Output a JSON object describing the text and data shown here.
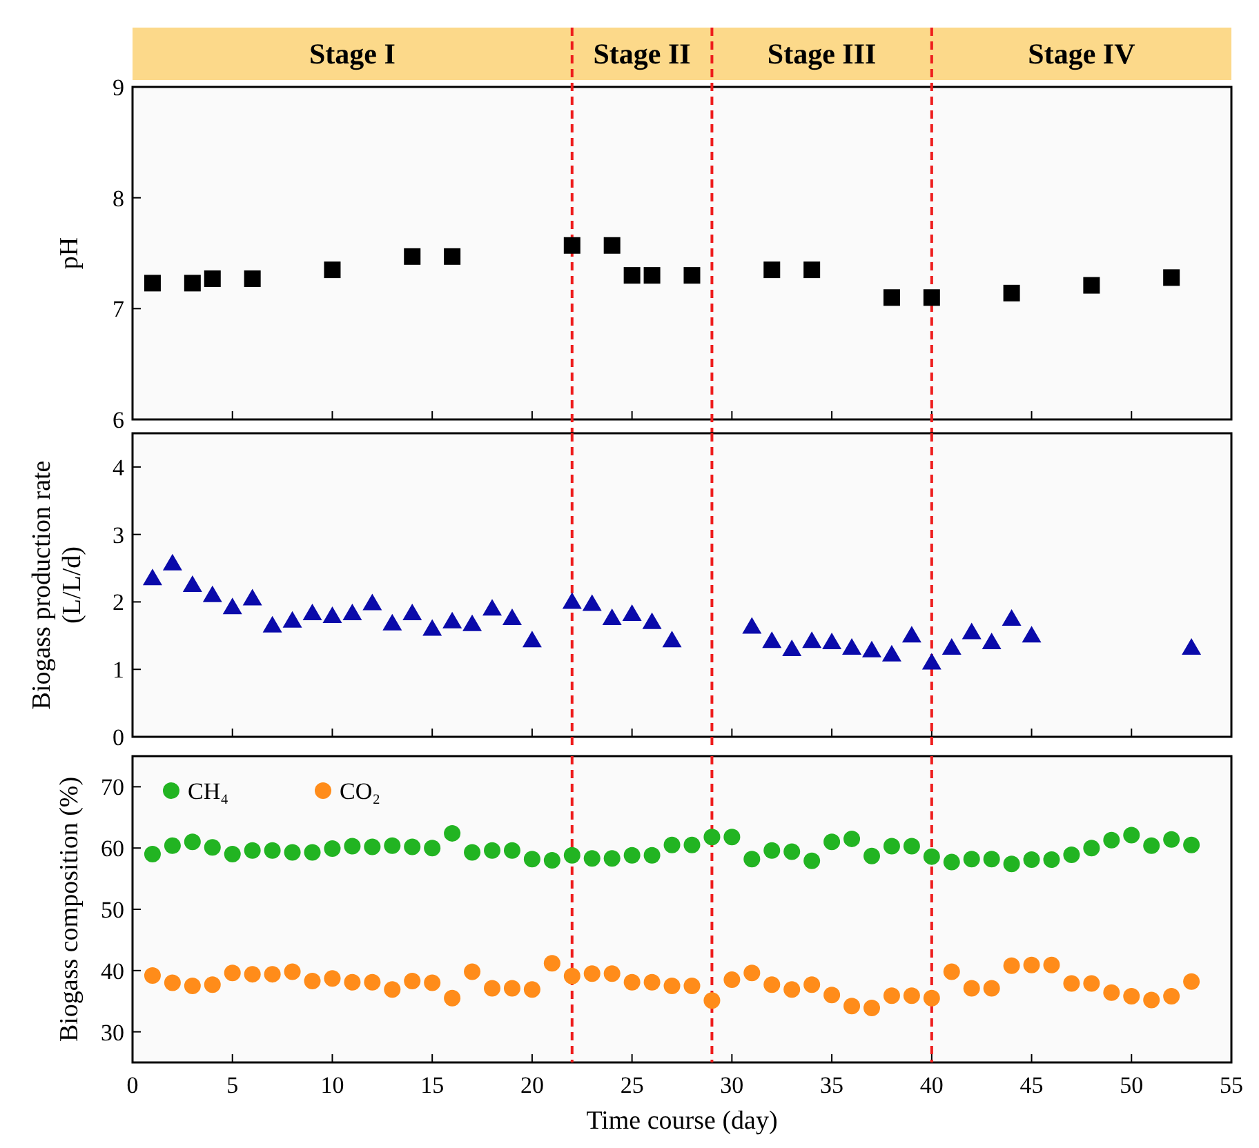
{
  "chart_data": [
    {
      "type": "scatter",
      "ylabel": "pH",
      "xlim": [
        0,
        55
      ],
      "xticks": [
        0,
        5,
        10,
        15,
        20,
        25,
        30,
        35,
        40,
        45,
        50,
        55
      ],
      "ylim": [
        6,
        9
      ],
      "yticks": [
        6,
        7,
        8,
        9
      ],
      "tick_labels": "y",
      "grid": false,
      "marker": "square",
      "annotations": [
        "Stage I",
        "Stage II",
        "Stage III",
        "Stage IV"
      ],
      "ref_lines": [
        {
          "axis": "x",
          "value": 22,
          "color": "#ee1c1c",
          "line_style": "dashed"
        },
        {
          "axis": "x",
          "value": 29,
          "color": "#ee1c1c",
          "line_style": "dashed"
        },
        {
          "axis": "x",
          "value": 40,
          "color": "#ee1c1c",
          "line_style": "dashed"
        }
      ],
      "series": [
        {
          "color": "#000000",
          "x": [
            1,
            3,
            4,
            6,
            10,
            14,
            16,
            22,
            24,
            25,
            26,
            28,
            32,
            34,
            38,
            40,
            44,
            48,
            52
          ],
          "values": [
            7.23,
            7.23,
            7.27,
            7.27,
            7.35,
            7.47,
            7.47,
            7.57,
            7.57,
            7.3,
            7.3,
            7.3,
            7.35,
            7.35,
            7.1,
            7.1,
            7.14,
            7.21,
            7.28
          ]
        }
      ]
    },
    {
      "type": "scatter",
      "ylabel": "Biogass production rate\n(L/L/d)",
      "xlim": [
        0,
        55
      ],
      "xticks": [
        0,
        5,
        10,
        15,
        20,
        25,
        30,
        35,
        40,
        45,
        50,
        55
      ],
      "ylim": [
        0,
        4.5
      ],
      "yticks": [
        0,
        1,
        2,
        3,
        4
      ],
      "tick_labels": "y",
      "grid": false,
      "marker": "triangle",
      "ref_lines": [
        {
          "axis": "x",
          "value": 22,
          "color": "#ee1c1c",
          "line_style": "dashed"
        },
        {
          "axis": "x",
          "value": 29,
          "color": "#ee1c1c",
          "line_style": "dashed"
        },
        {
          "axis": "x",
          "value": 40,
          "color": "#ee1c1c",
          "line_style": "dashed"
        }
      ],
      "series": [
        {
          "color": "#0a0aaa",
          "x": [
            1,
            2,
            3,
            4,
            5,
            6,
            7,
            8,
            9,
            10,
            11,
            12,
            13,
            14,
            15,
            16,
            17,
            18,
            19,
            20,
            22,
            23,
            24,
            25,
            26,
            27,
            31,
            32,
            33,
            34,
            35,
            36,
            37,
            38,
            39,
            40,
            41,
            42,
            43,
            44,
            45,
            53
          ],
          "values": [
            2.35,
            2.57,
            2.25,
            2.1,
            1.92,
            2.05,
            1.65,
            1.72,
            1.83,
            1.79,
            1.83,
            1.98,
            1.68,
            1.83,
            1.6,
            1.71,
            1.67,
            1.9,
            1.76,
            1.43,
            2.0,
            1.97,
            1.76,
            1.82,
            1.7,
            1.43,
            1.63,
            1.42,
            1.3,
            1.42,
            1.4,
            1.32,
            1.28,
            1.22,
            1.5,
            1.1,
            1.32,
            1.55,
            1.4,
            1.75,
            1.5,
            1.32
          ]
        }
      ]
    },
    {
      "type": "scatter",
      "ylabel": "Biogass composition (%)",
      "xlabel": "Time course (day)",
      "xlim": [
        0,
        55
      ],
      "xticks": [
        0,
        5,
        10,
        15,
        20,
        25,
        30,
        35,
        40,
        45,
        50,
        55
      ],
      "ylim": [
        25,
        75
      ],
      "yticks": [
        30,
        40,
        50,
        60,
        70
      ],
      "grid": false,
      "marker": "circle",
      "legend": "top left",
      "ref_lines": [
        {
          "axis": "x",
          "value": 22,
          "color": "#ee1c1c",
          "line_style": "dashed"
        },
        {
          "axis": "x",
          "value": 29,
          "color": "#ee1c1c",
          "line_style": "dashed"
        },
        {
          "axis": "x",
          "value": 40,
          "color": "#ee1c1c",
          "line_style": "dashed"
        }
      ],
      "x": [
        1,
        2,
        3,
        4,
        5,
        6,
        7,
        8,
        9,
        10,
        11,
        12,
        13,
        14,
        15,
        16,
        17,
        18,
        19,
        20,
        21,
        22,
        23,
        24,
        25,
        26,
        27,
        28,
        29,
        30,
        31,
        32,
        33,
        34,
        35,
        36,
        37,
        38,
        39,
        40,
        41,
        42,
        43,
        44,
        45,
        46,
        47,
        48,
        49,
        50,
        51,
        52,
        53
      ],
      "series": [
        {
          "name": "CH₄",
          "color": "#22b422",
          "values": [
            59,
            60.4,
            61,
            60.1,
            59,
            59.6,
            59.6,
            59.3,
            59.3,
            59.9,
            60.3,
            60.2,
            60.4,
            60.2,
            60,
            62.4,
            59.3,
            59.6,
            59.6,
            58.2,
            58,
            58.8,
            58.3,
            58.3,
            58.8,
            58.8,
            60.5,
            60.5,
            61.8,
            61.8,
            58.2,
            59.6,
            59.4,
            57.9,
            61,
            61.5,
            58.7,
            60.3,
            60.3,
            58.6,
            57.7,
            58.2,
            58.2,
            57.4,
            58.1,
            58.1,
            58.9,
            60,
            61.3,
            62.1,
            60.4,
            61.4,
            60.5
          ]
        },
        {
          "name": "CO₂",
          "color": "#ff8c1a",
          "values": [
            39.2,
            38,
            37.5,
            37.7,
            39.6,
            39.4,
            39.4,
            39.8,
            38.3,
            38.7,
            38.1,
            38.1,
            36.9,
            38.3,
            38,
            35.5,
            39.8,
            37.1,
            37.1,
            36.9,
            41.2,
            39.1,
            39.5,
            39.5,
            38.1,
            38.1,
            37.5,
            37.5,
            35.1,
            38.5,
            39.6,
            37.7,
            36.9,
            37.7,
            36,
            34.2,
            33.9,
            35.9,
            35.9,
            35.5,
            39.8,
            37.1,
            37.1,
            40.8,
            40.9,
            40.9,
            37.9,
            37.9,
            36.4,
            35.8,
            35.2,
            35.8,
            38.2
          ]
        }
      ]
    }
  ]
}
